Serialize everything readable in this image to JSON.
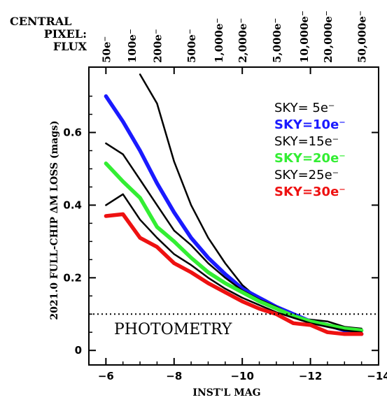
{
  "corner_label": {
    "line1": "CENTRAL",
    "line2": "PIXEL:",
    "line3": "FLUX"
  },
  "chart_data": {
    "type": "line",
    "xlabel": "INST'L MAG",
    "ylabel": "2021.0 FULL-CHIP ΔM LOSS (mags)",
    "xlim": [
      -5.5,
      -14
    ],
    "ylim": [
      -0.04,
      0.78
    ],
    "x_ticks": [
      -6,
      -8,
      -10,
      -12,
      -14
    ],
    "y_ticks": [
      0,
      0.2,
      0.4,
      0.6
    ],
    "x_tick_labels": [
      "−6",
      "−8",
      "−10",
      "−12",
      "−14"
    ],
    "y_tick_labels": [
      "0",
      "0.2",
      "0.4",
      "0.6"
    ],
    "top_axis": {
      "labels": [
        "50e⁻",
        "100e⁻",
        "200e⁻",
        "500e⁻",
        "1,000e⁻",
        "2,000e⁻",
        "5,000e⁻",
        "10,000e⁻",
        "20,000e⁻",
        "50,000e⁻"
      ],
      "mag": [
        -6.0,
        -6.75,
        -7.5,
        -8.5,
        -9.3,
        -10.0,
        -11.0,
        -11.8,
        -12.5,
        -13.5
      ]
    },
    "reference_line": {
      "y": 0.1,
      "style": "dotted"
    },
    "annotation": "PHOTOMETRY",
    "legend_position": "top-right",
    "grid": false,
    "series": [
      {
        "name": "SKY= 5e⁻",
        "color": "#000000",
        "width": 2.5,
        "x": [
          -7.0,
          -7.5,
          -8.0,
          -8.5,
          -9.0,
          -9.5,
          -10.0,
          -10.5,
          -11.0,
          -11.5,
          -12.0,
          -12.5,
          -13.0,
          -13.5
        ],
        "y": [
          0.76,
          0.68,
          0.52,
          0.4,
          0.31,
          0.24,
          0.18,
          0.14,
          0.12,
          0.09,
          0.085,
          0.08,
          0.065,
          0.06
        ]
      },
      {
        "name": "SKY=10e⁻",
        "color": "#1a1aff",
        "width": 5.5,
        "x": [
          -6.0,
          -6.5,
          -7.0,
          -7.5,
          -8.0,
          -8.5,
          -9.0,
          -9.5,
          -10.0,
          -10.5,
          -11.0,
          -11.5,
          -12.0,
          -12.5,
          -13.0,
          -13.5
        ],
        "y": [
          0.7,
          0.63,
          0.55,
          0.46,
          0.38,
          0.31,
          0.255,
          0.21,
          0.17,
          0.145,
          0.12,
          0.1,
          0.08,
          0.07,
          0.055,
          0.045
        ]
      },
      {
        "name": "SKY=15e⁻",
        "color": "#000000",
        "width": 2.5,
        "x": [
          -6.0,
          -6.5,
          -7.0,
          -7.5,
          -8.0,
          -8.5,
          -9.0,
          -9.5,
          -10.0,
          -10.5,
          -11.0,
          -11.5,
          -12.0,
          -12.5,
          -13.0,
          -13.5
        ],
        "y": [
          0.57,
          0.54,
          0.47,
          0.4,
          0.33,
          0.29,
          0.24,
          0.2,
          0.165,
          0.14,
          0.12,
          0.095,
          0.08,
          0.07,
          0.06,
          0.05
        ]
      },
      {
        "name": "SKY=20e⁻",
        "color": "#33ee33",
        "width": 5.5,
        "x": [
          -6.0,
          -6.5,
          -7.0,
          -7.5,
          -8.0,
          -8.5,
          -9.0,
          -9.5,
          -10.0,
          -10.5,
          -11.0,
          -11.5,
          -12.0,
          -12.5,
          -13.0,
          -13.5
        ],
        "y": [
          0.515,
          0.465,
          0.42,
          0.34,
          0.3,
          0.255,
          0.215,
          0.185,
          0.16,
          0.135,
          0.115,
          0.095,
          0.08,
          0.07,
          0.06,
          0.055
        ]
      },
      {
        "name": "SKY=25e⁻",
        "color": "#000000",
        "width": 2.5,
        "x": [
          -6.0,
          -6.5,
          -7.0,
          -7.5,
          -8.0,
          -8.5,
          -9.0,
          -9.5,
          -10.0,
          -10.5,
          -11.0,
          -11.5,
          -12.0,
          -12.5,
          -13.0,
          -13.5
        ],
        "y": [
          0.4,
          0.43,
          0.36,
          0.31,
          0.265,
          0.235,
          0.2,
          0.17,
          0.145,
          0.125,
          0.105,
          0.09,
          0.075,
          0.065,
          0.055,
          0.05
        ]
      },
      {
        "name": "SKY=30e⁻",
        "color": "#ee1111",
        "width": 5.5,
        "x": [
          -6.0,
          -6.5,
          -7.0,
          -7.5,
          -8.0,
          -8.5,
          -9.0,
          -9.5,
          -10.0,
          -10.5,
          -11.0,
          -11.5,
          -12.0,
          -12.5,
          -13.0,
          -13.5
        ],
        "y": [
          0.37,
          0.375,
          0.31,
          0.285,
          0.24,
          0.215,
          0.185,
          0.16,
          0.135,
          0.115,
          0.1,
          0.075,
          0.07,
          0.05,
          0.045,
          0.045
        ]
      }
    ]
  }
}
